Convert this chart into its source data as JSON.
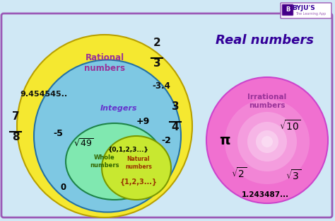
{
  "bg_color": "#d0e8f5",
  "border_color": "#9b59b6",
  "title_real": "Real numbers",
  "title_real_color": "#330099",
  "title_rational": "Rational\nnumbers",
  "title_rational_color": "#993399",
  "title_integers": "Integers",
  "title_integers_color": "#6633cc",
  "title_whole": "Whole\nnumbers",
  "title_whole_color": "#336600",
  "title_natural": "Natural\nnumbers",
  "title_natural_color": "#993300",
  "title_irrational": "Irrational\nnumbers",
  "title_irrational_color": "#993399",
  "rational_color": "#f5e830",
  "rational_edge": "#b8a000",
  "integers_color": "#7ec8e3",
  "integers_edge": "#2471a3",
  "whole_color": "#80e8b0",
  "whole_edge": "#1e8449",
  "natural_color": "#c8e830",
  "natural_edge": "#7a9900",
  "irrational_color_outer": "#f070d0",
  "irrational_color_inner": "#ffc0f8",
  "irrational_edge": "#cc44cc",
  "text_color": "#000000",
  "frac_color": "#111111"
}
